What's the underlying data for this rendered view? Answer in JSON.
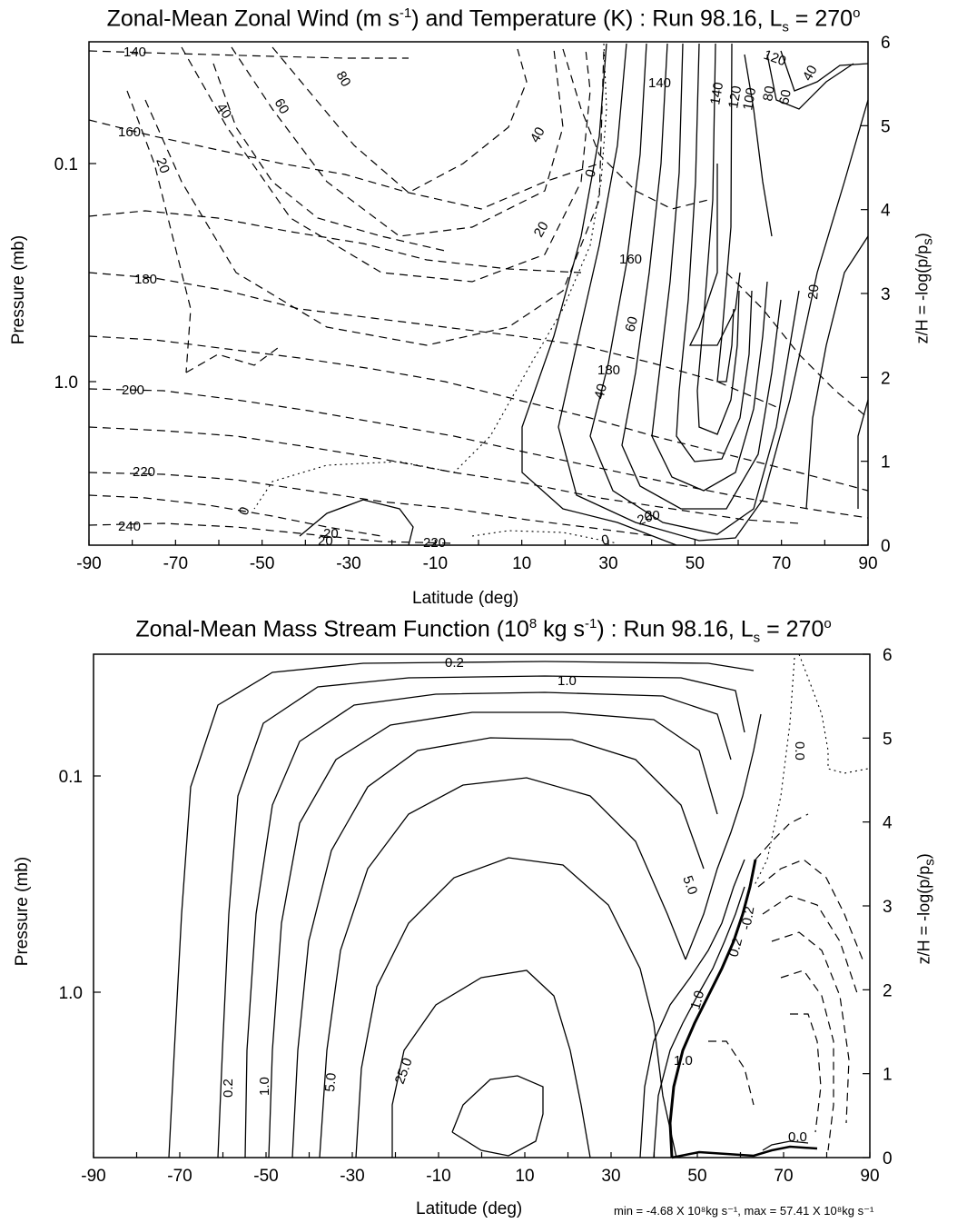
{
  "chart_data": [
    {
      "type": "contour",
      "title_main": "Zonal-Mean Zonal Wind (m s",
      "title_sup": "-1",
      "title_mid": ") and Temperature (K) : Run 98.16, L",
      "title_sub": "s",
      "title_end": " = 270",
      "title_deg": "o",
      "xlabel": "Latitude (deg)",
      "ylabel": "Pressure (mb)",
      "ylabel_right": "z/H = -log(p/p",
      "ylabel_right_sub": "s",
      "ylabel_right_end": ")",
      "xlim": [
        -90,
        90
      ],
      "zlim": [
        0,
        6
      ],
      "x_ticks": [
        "-90",
        "-70",
        "-50",
        "-30",
        "-10",
        "10",
        "30",
        "50",
        "70",
        "90"
      ],
      "y_ticks_left": [
        "0.1",
        "1.0"
      ],
      "y_ticks_right": [
        "0",
        "1",
        "2",
        "3",
        "4",
        "5",
        "6"
      ],
      "contour_labels": {
        "wind": [
          "60",
          "80",
          "40",
          "20",
          "40",
          "20",
          "0",
          "0",
          "20",
          "60",
          "40",
          "20",
          "20",
          "0",
          "20",
          "120",
          "140",
          "120",
          "100",
          "80",
          "60",
          "40",
          "20"
        ],
        "temperature": [
          "140",
          "160",
          "180",
          "200",
          "220",
          "240",
          "220",
          "160",
          "180",
          "140"
        ]
      }
    },
    {
      "type": "contour",
      "title_main": "Zonal-Mean Mass Stream Function (10",
      "title_sup": "8",
      "title_mid": " kg s",
      "title_sup2": "-1",
      "title_mid2": ") : Run 98.16, L",
      "title_sub": "s",
      "title_end": " = 270",
      "title_deg": "o",
      "xlabel": "Latitude (deg)",
      "ylabel": "Pressure (mb)",
      "ylabel_right": "z/H = -log(p/p",
      "ylabel_right_sub": "s",
      "ylabel_right_end": ")",
      "xlim": [
        -90,
        90
      ],
      "zlim": [
        0,
        6
      ],
      "x_ticks": [
        "-90",
        "-70",
        "-50",
        "-30",
        "-10",
        "10",
        "30",
        "50",
        "70",
        "90"
      ],
      "y_ticks_left": [
        "0.1",
        "1.0"
      ],
      "y_ticks_right": [
        "0",
        "1",
        "2",
        "3",
        "4",
        "5",
        "6"
      ],
      "contour_labels": [
        "0.2",
        "1.0",
        "0.2",
        "1.0",
        "5.0",
        "25.0",
        "5.0",
        "0.0",
        "1.0",
        "1.0",
        "0.2",
        "-0.2",
        "0.0"
      ],
      "footnote": "min = -4.68 X 10⁸kg s⁻¹, max = 57.41 X 10⁸kg s⁻¹"
    }
  ]
}
